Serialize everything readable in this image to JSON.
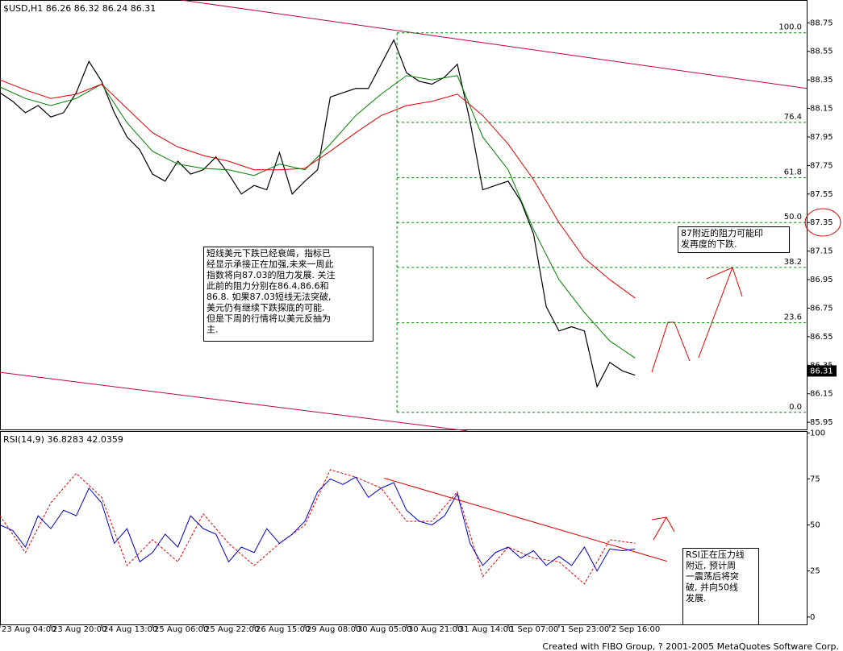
{
  "chart_data": [
    {
      "type": "line",
      "title": "$USD,H1  86.26 86.32 86.24 86.31",
      "xlim": [
        0,
        254
      ],
      "ylim": [
        85.9,
        88.91
      ],
      "yticks": [
        88.75,
        88.55,
        88.35,
        88.15,
        87.95,
        87.75,
        87.55,
        87.35,
        87.15,
        86.95,
        86.75,
        86.55,
        86.35,
        86.15,
        85.95
      ],
      "series": [
        {
          "color": "#000000",
          "width": 1.2,
          "x": [
            0,
            4,
            8,
            12,
            16,
            20,
            24,
            28,
            32,
            36,
            40,
            44,
            48,
            52,
            56,
            60,
            64,
            68,
            72,
            76,
            80,
            84,
            88,
            92,
            96,
            100,
            104,
            108,
            112,
            116,
            120,
            124,
            128,
            132,
            136,
            140,
            144,
            148,
            152,
            156,
            160,
            164,
            168,
            172,
            176,
            180,
            184,
            188,
            192,
            196,
            200
          ],
          "values": [
            88.26,
            88.2,
            88.12,
            88.17,
            88.09,
            88.12,
            88.26,
            88.48,
            88.34,
            88.12,
            87.95,
            87.86,
            87.69,
            87.64,
            87.78,
            87.69,
            87.72,
            87.81,
            87.69,
            87.55,
            87.61,
            87.58,
            87.84,
            87.55,
            87.64,
            87.72,
            88.23,
            88.26,
            88.29,
            88.29,
            88.46,
            88.63,
            88.4,
            88.34,
            88.32,
            88.37,
            88.46,
            88.06,
            87.58,
            87.61,
            87.64,
            87.5,
            87.27,
            86.76,
            86.59,
            86.62,
            86.59,
            86.2,
            86.37,
            86.31,
            86.28
          ]
        },
        {
          "color": "#007f00",
          "width": 1,
          "x": [
            0,
            8,
            16,
            24,
            32,
            40,
            48,
            56,
            64,
            72,
            80,
            88,
            96,
            104,
            112,
            120,
            128,
            136,
            144,
            152,
            160,
            168,
            176,
            184,
            192,
            200
          ],
          "values": [
            88.3,
            88.22,
            88.17,
            88.22,
            88.32,
            88.05,
            87.85,
            87.76,
            87.73,
            87.72,
            87.68,
            87.76,
            87.72,
            87.9,
            88.1,
            88.25,
            88.38,
            88.35,
            88.38,
            87.95,
            87.72,
            87.3,
            86.95,
            86.72,
            86.52,
            86.4
          ]
        },
        {
          "color": "#e00000",
          "width": 1,
          "x": [
            0,
            8,
            16,
            24,
            32,
            40,
            48,
            56,
            64,
            72,
            80,
            88,
            96,
            104,
            112,
            120,
            128,
            136,
            144,
            152,
            160,
            168,
            176,
            184,
            192,
            200
          ],
          "values": [
            88.35,
            88.28,
            88.22,
            88.25,
            88.32,
            88.15,
            87.98,
            87.88,
            87.82,
            87.78,
            87.72,
            87.72,
            87.73,
            87.85,
            87.98,
            88.1,
            88.17,
            88.2,
            88.25,
            88.1,
            87.9,
            87.65,
            87.35,
            87.1,
            86.95,
            86.82
          ]
        }
      ],
      "trendlines": [
        {
          "color": "#c0004a",
          "x": [
            57,
            254
          ],
          "values": [
            88.91,
            88.29
          ]
        },
        {
          "color": "#c0004a",
          "x": [
            0,
            147
          ],
          "values": [
            86.3,
            85.89
          ]
        }
      ],
      "fib": {
        "color": "#008000",
        "start_x": 125,
        "high": 88.68,
        "low": 86.02,
        "levels": [
          {
            "value": 100,
            "label": "100.0"
          },
          76.4,
          61.8,
          {
            "value": 50,
            "label": "50.0"
          },
          38.2,
          23.6,
          {
            "value": 0,
            "label": "0.0"
          }
        ]
      },
      "last_price": 86.31,
      "annotations": [
        {
          "lines": [
            "短线美元下跌已经衰竭，指标已",
            "经显示承接正在加强,未来一周此",
            "指数将向87.03的阻力发展. 关注",
            "此前的阻力分别在86.4,86.6和",
            "86.8. 如果87.03短线无法突破,",
            "美元仍有继续下跌探底的可能.",
            "但是下周的行情将以美元反抽为",
            "主."
          ]
        },
        {
          "lines": [
            "87附近的阻力可能印",
            "发再度的下跌."
          ]
        }
      ]
    },
    {
      "type": "line",
      "title": "RSI(14,9) 36.8283 42.0359",
      "xlim": [
        0,
        254
      ],
      "ylim": [
        -4,
        101
      ],
      "yticks": [
        100,
        75,
        50,
        25,
        0
      ],
      "xticks": [
        {
          "value": 0,
          "label": "23 Aug 04:00"
        },
        {
          "value": 16,
          "label": "23 Aug 20:00"
        },
        {
          "value": 32,
          "label": "24 Aug 13:00"
        },
        {
          "value": 48,
          "label": "25 Aug 06:00"
        },
        {
          "value": 64,
          "label": "25 Aug 22:00"
        },
        {
          "value": 80,
          "label": "26 Aug 15:00"
        },
        {
          "value": 96,
          "label": "29 Aug 08:00"
        },
        {
          "value": 112,
          "label": "30 Aug 05:00"
        },
        {
          "value": 128,
          "label": "30 Aug 21:00"
        },
        {
          "value": 144,
          "label": "31 Aug 14:00"
        },
        {
          "value": 160,
          "label": "1 Sep 07:00"
        },
        {
          "value": 176,
          "label": "1 Sep 23:00"
        },
        {
          "value": 192,
          "label": "2 Sep 16:00"
        }
      ],
      "series": [
        {
          "color": "#e00000",
          "width": 1,
          "dash": true,
          "x": [
            0,
            8,
            16,
            24,
            32,
            40,
            48,
            56,
            64,
            72,
            80,
            88,
            96,
            104,
            112,
            120,
            128,
            136,
            144,
            152,
            160,
            168,
            176,
            184,
            192,
            200
          ],
          "values": [
            55,
            35,
            62,
            78,
            65,
            28,
            42,
            30,
            56,
            40,
            28,
            40,
            50,
            80,
            76,
            70,
            52,
            52,
            68,
            22,
            38,
            32,
            30,
            18,
            42,
            40
          ]
        },
        {
          "color": "#0000c8",
          "width": 1,
          "x": [
            0,
            4,
            8,
            12,
            16,
            20,
            24,
            28,
            32,
            36,
            40,
            44,
            48,
            52,
            56,
            60,
            64,
            68,
            72,
            76,
            80,
            84,
            88,
            92,
            96,
            100,
            104,
            108,
            112,
            116,
            120,
            124,
            128,
            132,
            136,
            140,
            144,
            148,
            152,
            156,
            160,
            164,
            168,
            172,
            176,
            180,
            184,
            188,
            192,
            196,
            200
          ],
          "values": [
            50,
            47,
            38,
            55,
            48,
            58,
            55,
            70,
            62,
            40,
            48,
            30,
            35,
            45,
            38,
            55,
            48,
            45,
            30,
            38,
            35,
            48,
            40,
            45,
            52,
            68,
            75,
            72,
            76,
            65,
            70,
            73,
            58,
            52,
            50,
            55,
            67,
            40,
            28,
            35,
            38,
            32,
            36,
            28,
            33,
            28,
            38,
            25,
            37,
            36,
            37
          ]
        }
      ],
      "trendlines": [
        {
          "color": "#e00000",
          "x": [
            121,
            210
          ],
          "values": [
            75.4,
            30.3
          ]
        }
      ],
      "annotations": [
        {
          "lines": [
            "RSI正在压力线",
            "附近, 预计周",
            "一震荡后将突",
            "破, 并向50线",
            "发展."
          ]
        }
      ]
    }
  ],
  "footer": "Created with FIBO Group, ? 2001-2005 MetaQuotes Software Corp."
}
